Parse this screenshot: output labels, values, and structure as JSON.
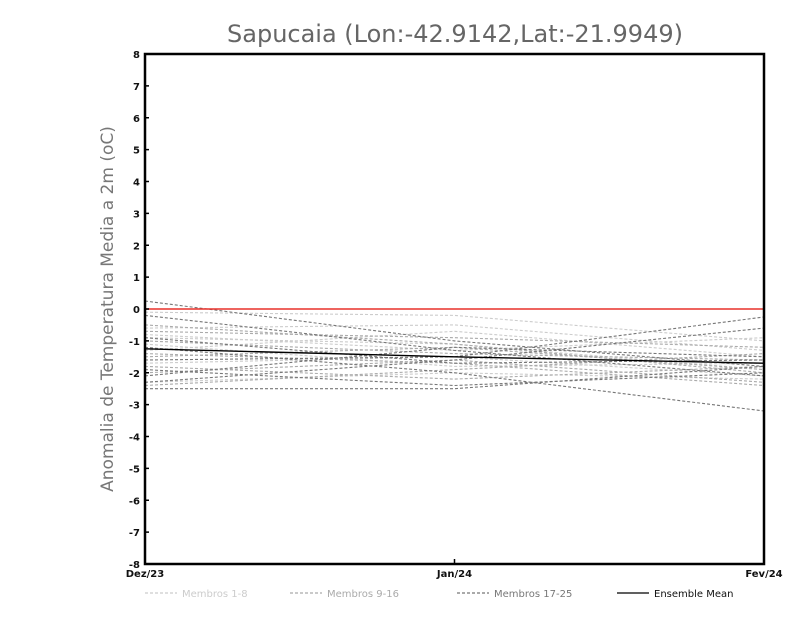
{
  "chart_data": {
    "type": "line",
    "title": "Sapucaia (Lon:-42.9142,Lat:-21.9949)",
    "xlabel": "",
    "ylabel": "Anomalia de Temperatura Media a 2m (oC)",
    "categories": [
      "Dez/23",
      "Jan/24",
      "Fev/24"
    ],
    "ylim": [
      -8,
      8
    ],
    "yticks": [
      "-8",
      "-7",
      "-6",
      "-5",
      "-4",
      "-3",
      "-2",
      "-1",
      "0",
      "1",
      "2",
      "3",
      "4",
      "5",
      "6",
      "7",
      "8"
    ],
    "zero_line_color": "#e8302a",
    "legend": [
      {
        "label": "Membros 1-8",
        "color": "#cccccc",
        "dash": true
      },
      {
        "label": "Membros 9-16",
        "color": "#aaaaaa",
        "dash": true
      },
      {
        "label": "Membros 17-25",
        "color": "#777777",
        "dash": true
      },
      {
        "label": "Ensemble Mean",
        "color": "#000000",
        "dash": false
      }
    ],
    "series": [
      {
        "name": "Membro 1",
        "group": 0,
        "values": [
          -0.1,
          -0.2,
          -1.0
        ]
      },
      {
        "name": "Membro 2",
        "group": 0,
        "values": [
          -0.6,
          -0.5,
          -1.3
        ]
      },
      {
        "name": "Membro 3",
        "group": 0,
        "values": [
          -0.9,
          -1.1,
          -1.9
        ]
      },
      {
        "name": "Membro 4",
        "group": 0,
        "values": [
          -1.3,
          -0.7,
          -1.5
        ]
      },
      {
        "name": "Membro 5",
        "group": 0,
        "values": [
          -1.7,
          -1.5,
          -2.1
        ]
      },
      {
        "name": "Membro 6",
        "group": 0,
        "values": [
          -2.3,
          -2.0,
          -2.2
        ]
      },
      {
        "name": "Membro 7",
        "group": 0,
        "values": [
          -0.8,
          -1.3,
          -0.9
        ]
      },
      {
        "name": "Membro 8",
        "group": 0,
        "values": [
          -1.1,
          -1.8,
          -1.7
        ]
      },
      {
        "name": "Membro 9",
        "group": 1,
        "values": [
          -0.7,
          -0.9,
          -1.2
        ]
      },
      {
        "name": "Membro 10",
        "group": 1,
        "values": [
          -1.5,
          -1.2,
          -1.9
        ]
      },
      {
        "name": "Membro 11",
        "group": 1,
        "values": [
          -2.0,
          -1.6,
          -2.3
        ]
      },
      {
        "name": "Membro 12",
        "group": 1,
        "values": [
          -1.0,
          -1.4,
          -1.6
        ]
      },
      {
        "name": "Membro 13",
        "group": 1,
        "values": [
          -2.4,
          -1.9,
          -1.4
        ]
      },
      {
        "name": "Membro 14",
        "group": 1,
        "values": [
          -0.5,
          -1.1,
          -2.0
        ]
      },
      {
        "name": "Membro 15",
        "group": 1,
        "values": [
          -1.8,
          -2.2,
          -1.8
        ]
      },
      {
        "name": "Membro 16",
        "group": 1,
        "values": [
          -1.4,
          -1.7,
          -2.4
        ]
      },
      {
        "name": "Membro 17",
        "group": 2,
        "values": [
          0.25,
          -1.0,
          -1.8
        ]
      },
      {
        "name": "Membro 18",
        "group": 2,
        "values": [
          -0.2,
          -1.3,
          -2.1
        ]
      },
      {
        "name": "Membro 19",
        "group": 2,
        "values": [
          -1.6,
          -1.5,
          -0.25
        ]
      },
      {
        "name": "Membro 20",
        "group": 2,
        "values": [
          -2.3,
          -1.6,
          -0.6
        ]
      },
      {
        "name": "Membro 21",
        "group": 2,
        "values": [
          -2.5,
          -2.5,
          -1.8
        ]
      },
      {
        "name": "Membro 22",
        "group": 2,
        "values": [
          -1.2,
          -2.0,
          -3.2
        ]
      },
      {
        "name": "Membro 23",
        "group": 2,
        "values": [
          -0.9,
          -1.7,
          -1.6
        ]
      },
      {
        "name": "Membro 24",
        "group": 2,
        "values": [
          -1.9,
          -2.4,
          -2.0
        ]
      },
      {
        "name": "Membro 25",
        "group": 2,
        "values": [
          -2.1,
          -1.2,
          -1.5
        ]
      },
      {
        "name": "Ensemble Mean",
        "group": 3,
        "values": [
          -1.25,
          -1.5,
          -1.7
        ]
      }
    ]
  }
}
